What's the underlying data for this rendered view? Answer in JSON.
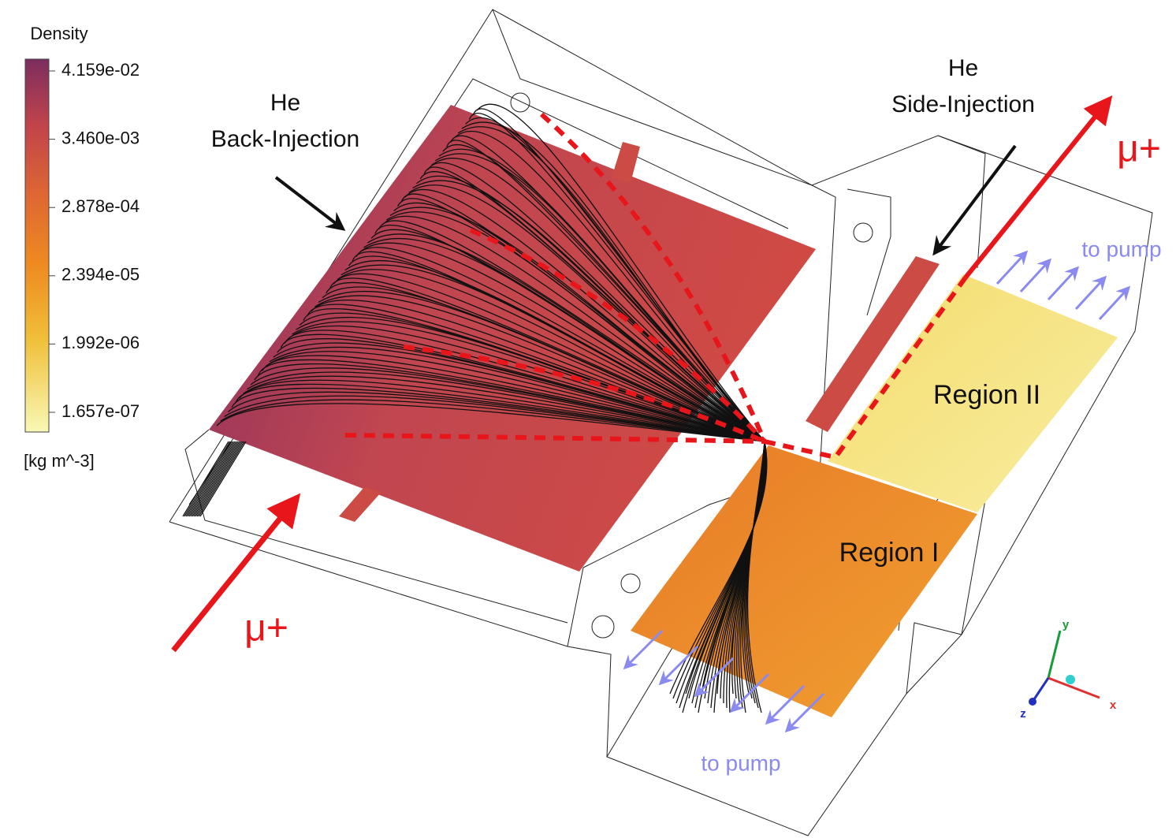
{
  "legend": {
    "title": "Density",
    "ticks": [
      "4.159e-02",
      "3.460e-03",
      "2.878e-04",
      "2.394e-05",
      "1.992e-06",
      "1.657e-07"
    ],
    "unit": "[kg m^-3]"
  },
  "annotations": {
    "back_injection": [
      "He",
      "Back-Injection"
    ],
    "side_injection": [
      "He",
      "Side-Injection"
    ],
    "muon_in": "μ+",
    "muon_out": "μ+",
    "region_1": "Region I",
    "region_2": "Region II",
    "pump_top": "to pump",
    "pump_bottom": "to pump"
  },
  "axes": {
    "x": "x",
    "y": "y",
    "z": "z"
  }
}
